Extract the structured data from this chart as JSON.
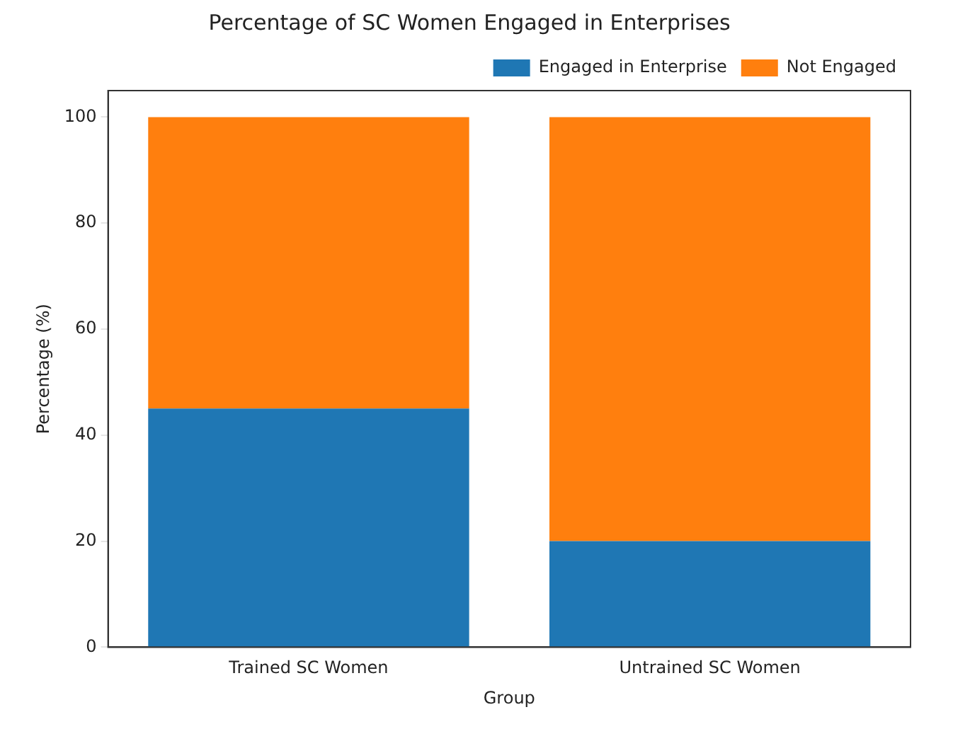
{
  "chart_data": {
    "type": "bar",
    "title": "Percentage of SC Women Engaged in Enterprises",
    "xlabel": "Group",
    "ylabel": "Percentage (%)",
    "categories": [
      "Trained SC Women",
      "Untrained SC Women"
    ],
    "series": [
      {
        "name": "Engaged in Enterprise",
        "color": "#1f77b4",
        "values": [
          45,
          20
        ]
      },
      {
        "name": "Not Engaged",
        "color": "#ff7f0e",
        "values": [
          55,
          80
        ]
      }
    ],
    "stacked": true,
    "ylim": [
      0,
      105
    ],
    "yticks": [
      0,
      20,
      40,
      60,
      80,
      100
    ],
    "grid": false,
    "legend": "top right"
  }
}
